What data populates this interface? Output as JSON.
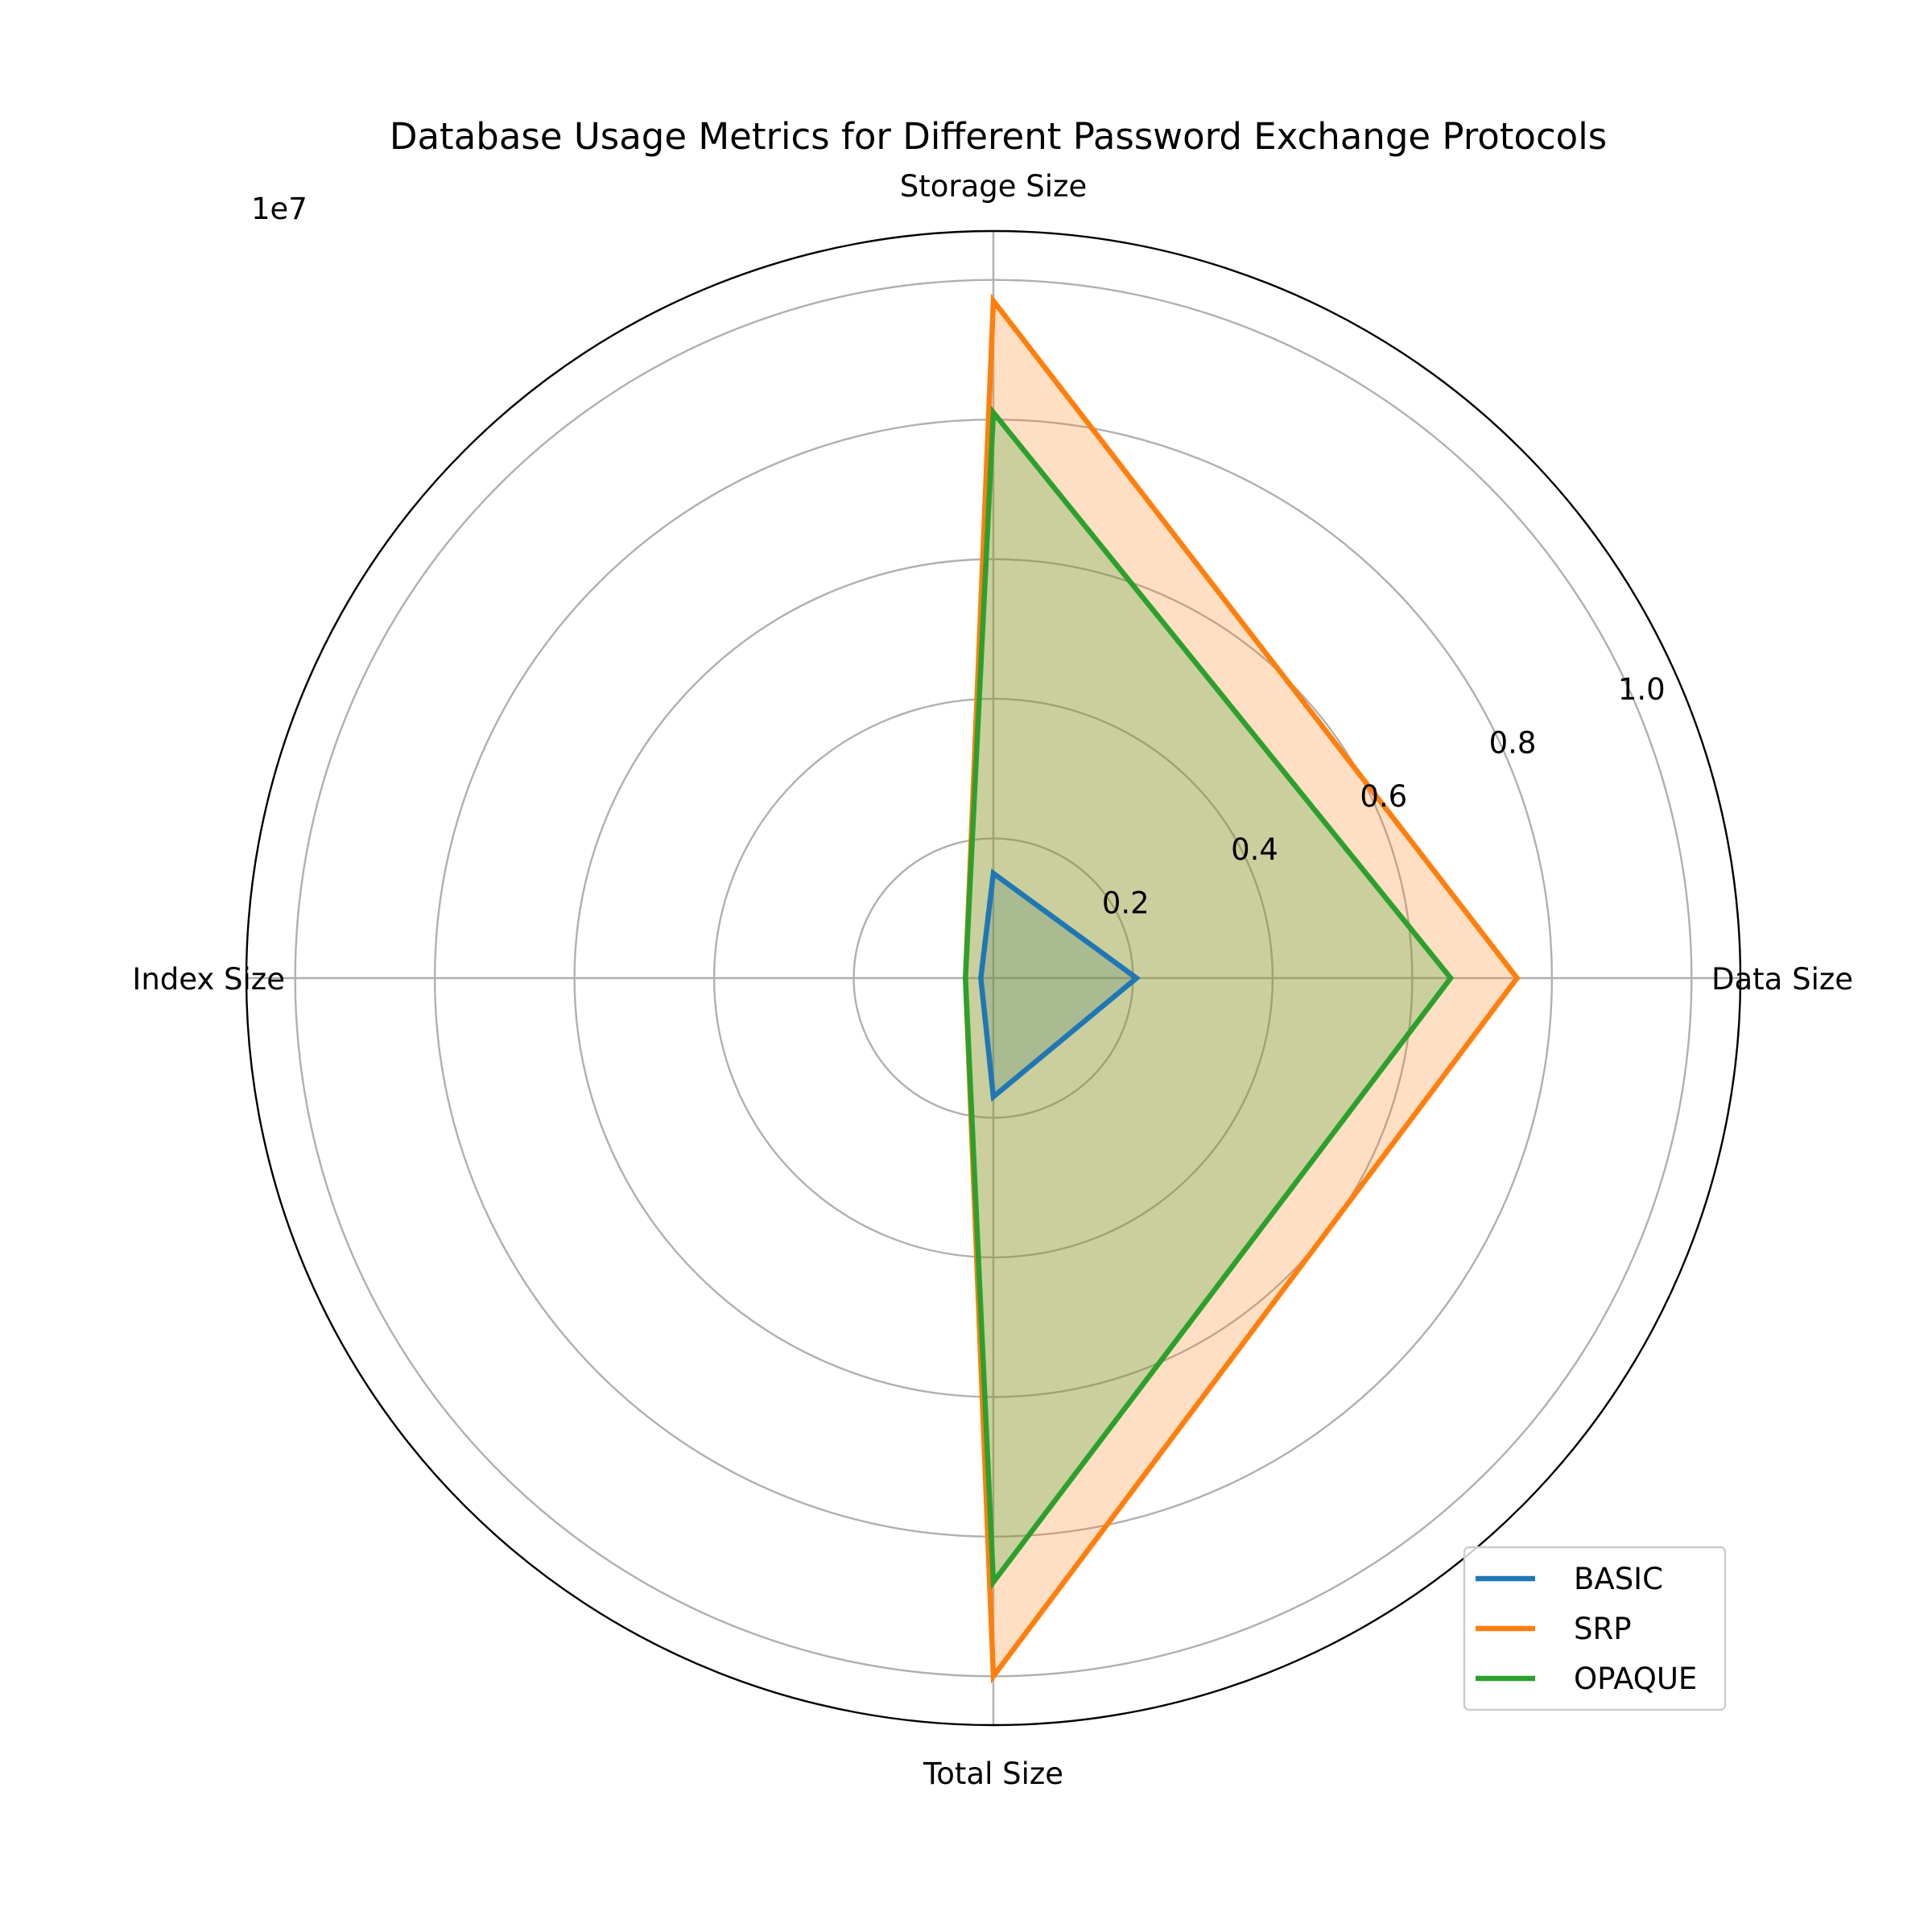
{
  "chart_data": {
    "type": "radar",
    "title": "Database Usage Metrics for Different Password Exchange Protocols",
    "categories": [
      "Data Size",
      "Storage Size",
      "Index Size",
      "Total Size"
    ],
    "scale_offset_label": "1e7",
    "scale_multiplier": 10000000,
    "rlim": [
      0,
      1.07
    ],
    "rticks": [
      0.2,
      0.4,
      0.6,
      0.8,
      1.0
    ],
    "rtick_labels": [
      "0.2",
      "0.4",
      "0.6",
      "0.8",
      "1.0"
    ],
    "grid": true,
    "legend_position": "lower-right",
    "series": [
      {
        "name": "BASIC",
        "color": "#1f77b4",
        "values": [
          2050000,
          1500000,
          180000,
          1700000
        ]
      },
      {
        "name": "SRP",
        "color": "#ff7f0e",
        "values": [
          7500000,
          9700000,
          400000,
          10000000
        ]
      },
      {
        "name": "OPAQUE",
        "color": "#2ca02c",
        "values": [
          6550000,
          8100000,
          400000,
          8650000
        ]
      }
    ]
  }
}
